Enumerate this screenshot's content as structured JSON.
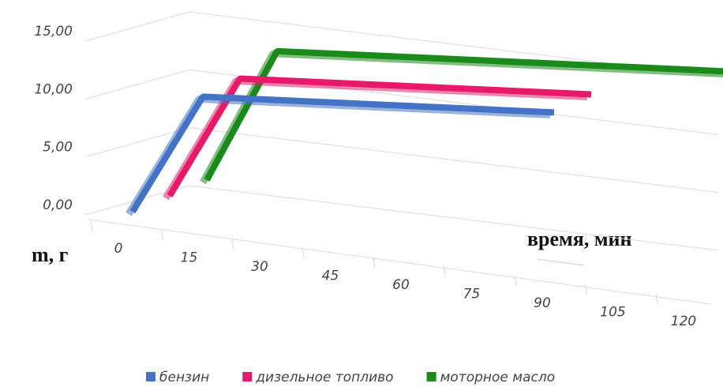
{
  "chart_data": {
    "type": "line3d",
    "x_label": "время, мин",
    "y_label": "m, г",
    "categories": [
      "0",
      "15",
      "30",
      "45",
      "60",
      "75",
      "90",
      "105",
      "120"
    ],
    "series": [
      {
        "name": "бензин",
        "color": "#4472c4",
        "values": [
          0,
          10.2,
          10.2,
          10.2,
          10.2,
          10.2,
          10.2,
          null,
          null
        ]
      },
      {
        "name": "дизельное топливо",
        "color": "#e6196a",
        "values": [
          0,
          10.4,
          10.4,
          10.4,
          10.4,
          10.4,
          10.4,
          null,
          null
        ]
      },
      {
        "name": "моторное масло",
        "color": "#1a8a1a",
        "values": [
          0,
          11.4,
          11.4,
          11.4,
          11.4,
          11.4,
          11.4,
          11.4,
          11.4
        ]
      }
    ],
    "ylim": [
      0,
      15
    ],
    "yticks": [
      {
        "value": 0,
        "label": "0,00"
      },
      {
        "value": 5,
        "label": "5,00"
      },
      {
        "value": 10,
        "label": "10,00"
      },
      {
        "value": 15,
        "label": "15,00"
      }
    ],
    "grid": true,
    "legend": "bottom"
  }
}
